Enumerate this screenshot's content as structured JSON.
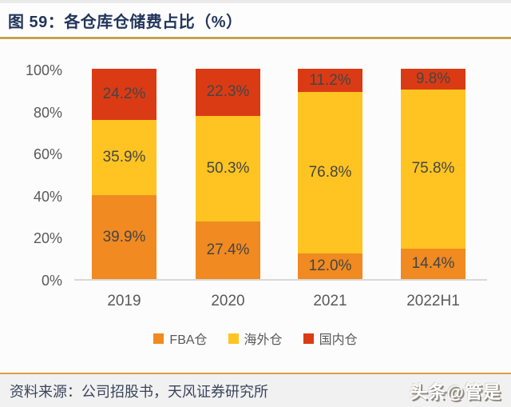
{
  "header": {
    "title": "图 59：各仓库仓储费占比（%）"
  },
  "chart_data": {
    "type": "bar",
    "variant": "stacked-column",
    "title": "各仓库仓储费占比（%）",
    "categories": [
      "2019",
      "2020",
      "2021",
      "2022H1"
    ],
    "series": [
      {
        "name": "FBA仓",
        "color": "#F08A21",
        "values": [
          39.9,
          27.4,
          12.0,
          14.4
        ]
      },
      {
        "name": "海外仓",
        "color": "#FFC421",
        "values": [
          35.9,
          50.3,
          76.8,
          75.8
        ]
      },
      {
        "name": "国内仓",
        "color": "#DA3B15",
        "values": [
          24.2,
          22.3,
          11.2,
          9.8
        ]
      }
    ],
    "y_ticks": [
      "100%",
      "80%",
      "60%",
      "40%",
      "20%",
      "0%"
    ],
    "ylim": [
      0,
      100
    ],
    "unit": "%",
    "value_label_suffix": "%",
    "grid": false,
    "legend_position": "bottom"
  },
  "footer": {
    "source": "资料来源：公司招股书，天风证券研究所",
    "watermark": "头条@管是"
  }
}
